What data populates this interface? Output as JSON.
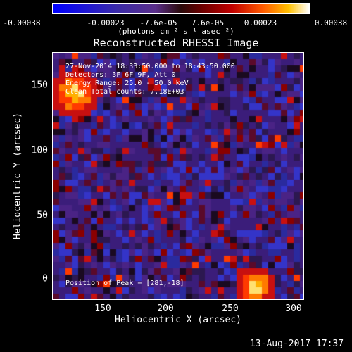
{
  "colorbar": {
    "ticks": [
      "-0.00038",
      "-0.00023",
      "-7.6e-05",
      "7.6e-05",
      "0.00023",
      "0.00038"
    ],
    "unit_label": "(photons cm⁻² s⁻¹ asec⁻²)"
  },
  "title": "Reconstructed RHESSI Image",
  "annotations": {
    "time": "27-Nov-2014 18:33:50.000 to 18:43:50.000",
    "detectors": "Detectors: 3F 6F 9F, Att 0",
    "energy": "Energy Range: 25.0 - 50.0 keV",
    "clean": "Clean   Total counts: 7.18E+03",
    "peak": "Position of Peak = [281,-18]"
  },
  "axes": {
    "xlabel": "Heliocentric X (arcsec)",
    "ylabel": "Heliocentric Y (arcsec)",
    "xticks": [
      "150",
      "200",
      "250",
      "300"
    ],
    "yticks": [
      "150",
      "100",
      "50",
      "0"
    ]
  },
  "footer": "13-Aug-2017 17:37"
}
